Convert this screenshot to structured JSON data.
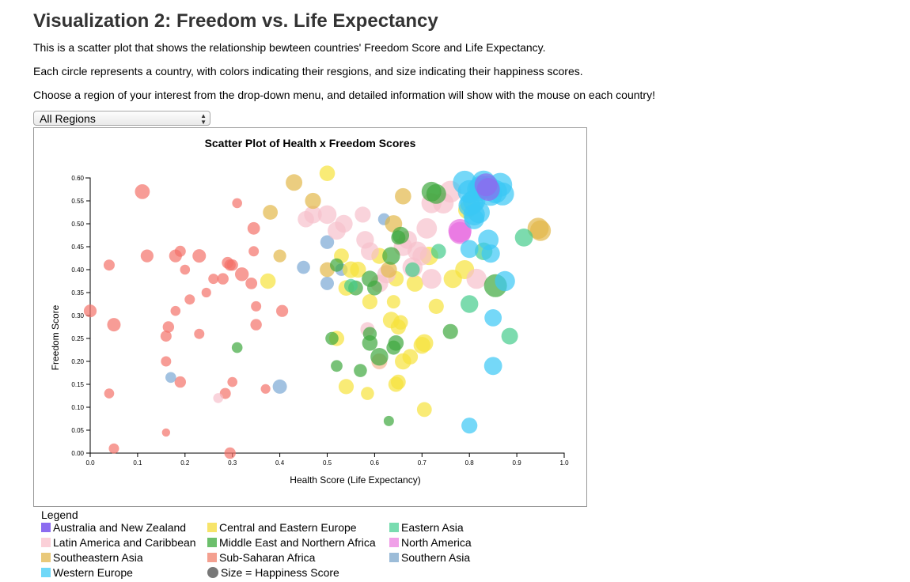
{
  "page": {
    "title": "Visualization 2: Freedom vs. Life Expectancy",
    "paragraphs": [
      "This is a scatter plot that shows the relationship bewteen countries' Freedom Score and Life Expectancy.",
      "Each circle represents a country, with colors indicating their resgions, and size indicating their happiness scores.",
      "Choose a region of your interest from the drop-down menu, and detailed information will show with the mouse on each country!"
    ]
  },
  "filter": {
    "selected": "All Regions"
  },
  "legend": {
    "title": "Legend",
    "items": [
      {
        "label": "Australia and New Zealand",
        "color": "#8c6cf0",
        "shape": "square"
      },
      {
        "label": "Central and Eastern Europe",
        "color": "#f7e46a",
        "shape": "square"
      },
      {
        "label": "Eastern Asia",
        "color": "#79dcb0",
        "shape": "square"
      },
      {
        "label": "Latin America and Caribbean",
        "color": "#fbd0d8",
        "shape": "square"
      },
      {
        "label": "Middle East and Northern Africa",
        "color": "#6cbf6c",
        "shape": "square"
      },
      {
        "label": "North America",
        "color": "#f0a0e8",
        "shape": "square"
      },
      {
        "label": "Southeastern Asia",
        "color": "#e9c97a",
        "shape": "square"
      },
      {
        "label": "Sub-Saharan Africa",
        "color": "#f4a090",
        "shape": "square"
      },
      {
        "label": "Southern Asia",
        "color": "#9cbcd8",
        "shape": "square"
      },
      {
        "label": "Western Europe",
        "color": "#6fd8f8",
        "shape": "square"
      },
      {
        "label": "Size = Happiness Score",
        "color": "#777777",
        "shape": "circle"
      }
    ]
  },
  "chart_data": {
    "type": "scatter",
    "title": "Scatter Plot of Health x Freedom Scores",
    "xlabel": "Health Score (Life Expectancy)",
    "ylabel": "Freedom Score",
    "xlim": [
      0,
      1
    ],
    "ylim": [
      0,
      0.6
    ],
    "xticks": [
      "0.0",
      "0.1",
      "0.2",
      "0.3",
      "0.4",
      "0.5",
      "0.6",
      "0.7",
      "0.8",
      "0.9",
      "1.0"
    ],
    "yticks": [
      "0.00",
      "0.05",
      "0.10",
      "0.15",
      "0.20",
      "0.25",
      "0.30",
      "0.35",
      "0.40",
      "0.45",
      "0.50",
      "0.55",
      "0.60"
    ],
    "grid": false,
    "size_encodes": "Happiness Score",
    "series": [
      {
        "name": "Sub-Saharan Africa",
        "color": "#f4726a",
        "points": [
          [
            0.11,
            0.57,
            5.0
          ],
          [
            0.12,
            0.43,
            4.4
          ],
          [
            0.04,
            0.41,
            3.9
          ],
          [
            0.0,
            0.31,
            4.4
          ],
          [
            0.05,
            0.28,
            4.6
          ],
          [
            0.04,
            0.13,
            3.6
          ],
          [
            0.05,
            0.01,
            3.7
          ],
          [
            0.16,
            0.045,
            3.1
          ],
          [
            0.16,
            0.2,
            3.7
          ],
          [
            0.16,
            0.255,
            3.9
          ],
          [
            0.165,
            0.275,
            4.0
          ],
          [
            0.18,
            0.43,
            4.4
          ],
          [
            0.19,
            0.44,
            3.9
          ],
          [
            0.2,
            0.4,
            3.6
          ],
          [
            0.18,
            0.31,
            3.6
          ],
          [
            0.21,
            0.335,
            3.7
          ],
          [
            0.23,
            0.43,
            4.6
          ],
          [
            0.23,
            0.26,
            3.7
          ],
          [
            0.245,
            0.35,
            3.5
          ],
          [
            0.26,
            0.38,
            3.7
          ],
          [
            0.28,
            0.38,
            4.0
          ],
          [
            0.29,
            0.415,
            4.1
          ],
          [
            0.295,
            0.41,
            4.0
          ],
          [
            0.3,
            0.41,
            4.0
          ],
          [
            0.32,
            0.39,
            4.7
          ],
          [
            0.31,
            0.545,
            3.6
          ],
          [
            0.345,
            0.49,
            4.3
          ],
          [
            0.345,
            0.44,
            3.7
          ],
          [
            0.34,
            0.37,
            4.1
          ],
          [
            0.35,
            0.32,
            3.7
          ],
          [
            0.35,
            0.28,
            4.0
          ],
          [
            0.405,
            0.31,
            4.2
          ],
          [
            0.37,
            0.14,
            3.5
          ],
          [
            0.3,
            0.155,
            3.6
          ],
          [
            0.285,
            0.13,
            3.9
          ],
          [
            0.19,
            0.155,
            4.0
          ],
          [
            0.295,
            0.0,
            4.0
          ]
        ]
      },
      {
        "name": "Southern Asia",
        "color": "#7aa8d4",
        "points": [
          [
            0.17,
            0.165,
            3.8
          ],
          [
            0.4,
            0.145,
            4.8
          ],
          [
            0.45,
            0.405,
            4.5
          ],
          [
            0.5,
            0.46,
            4.7
          ],
          [
            0.5,
            0.37,
            4.6
          ],
          [
            0.53,
            0.4,
            4.3
          ],
          [
            0.62,
            0.51,
            4.2
          ]
        ]
      },
      {
        "name": "Central and Eastern Europe",
        "color": "#f7e23c",
        "points": [
          [
            0.5,
            0.61,
            5.2
          ],
          [
            0.52,
            0.25,
            5.1
          ],
          [
            0.53,
            0.43,
            5.0
          ],
          [
            0.54,
            0.145,
            5.1
          ],
          [
            0.54,
            0.36,
            5.2
          ],
          [
            0.55,
            0.4,
            5.5
          ],
          [
            0.565,
            0.4,
            5.3
          ],
          [
            0.585,
            0.13,
            4.5
          ],
          [
            0.59,
            0.33,
            5.1
          ],
          [
            0.61,
            0.2,
            5.2
          ],
          [
            0.61,
            0.43,
            5.3
          ],
          [
            0.635,
            0.29,
            5.5
          ],
          [
            0.64,
            0.33,
            4.6
          ],
          [
            0.645,
            0.15,
            5.1
          ],
          [
            0.65,
            0.155,
            5.0
          ],
          [
            0.65,
            0.275,
            5.1
          ],
          [
            0.655,
            0.285,
            4.9
          ],
          [
            0.66,
            0.2,
            5.4
          ],
          [
            0.675,
            0.21,
            5.2
          ],
          [
            0.685,
            0.37,
            5.5
          ],
          [
            0.7,
            0.235,
            5.6
          ],
          [
            0.705,
            0.24,
            5.8
          ],
          [
            0.705,
            0.095,
            5.0
          ],
          [
            0.715,
            0.43,
            6.0
          ],
          [
            0.73,
            0.32,
            5.1
          ],
          [
            0.765,
            0.38,
            6.0
          ],
          [
            0.79,
            0.4,
            6.2
          ],
          [
            0.795,
            0.53,
            5.8
          ],
          [
            0.375,
            0.375,
            5.2
          ],
          [
            0.645,
            0.38,
            5.2
          ]
        ]
      },
      {
        "name": "Latin America and Caribbean",
        "color": "#f7c0cc",
        "points": [
          [
            0.27,
            0.12,
            3.6
          ],
          [
            0.455,
            0.51,
            5.4
          ],
          [
            0.47,
            0.52,
            5.8
          ],
          [
            0.5,
            0.52,
            6.1
          ],
          [
            0.52,
            0.485,
            5.9
          ],
          [
            0.535,
            0.5,
            5.8
          ],
          [
            0.575,
            0.52,
            5.3
          ],
          [
            0.58,
            0.465,
            5.8
          ],
          [
            0.585,
            0.27,
            4.8
          ],
          [
            0.59,
            0.44,
            5.9
          ],
          [
            0.61,
            0.37,
            5.8
          ],
          [
            0.61,
            0.2,
            5.3
          ],
          [
            0.625,
            0.39,
            6.0
          ],
          [
            0.66,
            0.45,
            6.1
          ],
          [
            0.67,
            0.465,
            6.0
          ],
          [
            0.68,
            0.405,
            6.5
          ],
          [
            0.69,
            0.44,
            6.3
          ],
          [
            0.7,
            0.43,
            6.2
          ],
          [
            0.71,
            0.49,
            6.6
          ],
          [
            0.72,
            0.38,
            6.4
          ],
          [
            0.72,
            0.545,
            6.5
          ],
          [
            0.745,
            0.545,
            6.7
          ],
          [
            0.76,
            0.57,
            7.0
          ],
          [
            0.815,
            0.38,
            6.5
          ]
        ]
      },
      {
        "name": "Southeastern Asia",
        "color": "#e2b84a",
        "points": [
          [
            0.43,
            0.59,
            5.5
          ],
          [
            0.38,
            0.525,
            5.0
          ],
          [
            0.4,
            0.43,
            4.4
          ],
          [
            0.47,
            0.55,
            5.3
          ],
          [
            0.5,
            0.4,
            5.0
          ],
          [
            0.63,
            0.4,
            5.4
          ],
          [
            0.64,
            0.5,
            5.7
          ],
          [
            0.66,
            0.56,
            5.4
          ],
          [
            0.945,
            0.49,
            6.8
          ],
          [
            0.95,
            0.485,
            6.7
          ]
        ]
      },
      {
        "name": "Middle East and Northern Africa",
        "color": "#3ea83e",
        "points": [
          [
            0.31,
            0.23,
            3.8
          ],
          [
            0.51,
            0.25,
            4.5
          ],
          [
            0.52,
            0.19,
            4.1
          ],
          [
            0.52,
            0.41,
            4.6
          ],
          [
            0.56,
            0.36,
            5.0
          ],
          [
            0.57,
            0.18,
            4.5
          ],
          [
            0.59,
            0.38,
            5.4
          ],
          [
            0.59,
            0.26,
            4.7
          ],
          [
            0.6,
            0.36,
            5.0
          ],
          [
            0.59,
            0.24,
            5.2
          ],
          [
            0.61,
            0.21,
            5.8
          ],
          [
            0.635,
            0.43,
            5.8
          ],
          [
            0.63,
            0.07,
            3.7
          ],
          [
            0.64,
            0.23,
            4.8
          ],
          [
            0.645,
            0.24,
            5.2
          ],
          [
            0.655,
            0.475,
            5.6
          ],
          [
            0.65,
            0.47,
            4.8
          ],
          [
            0.72,
            0.57,
            6.4
          ],
          [
            0.73,
            0.565,
            6.4
          ],
          [
            0.76,
            0.265,
            5.1
          ],
          [
            0.855,
            0.365,
            7.3
          ]
        ]
      },
      {
        "name": "Eastern Asia",
        "color": "#45cc8c",
        "points": [
          [
            0.55,
            0.365,
            4.6
          ],
          [
            0.68,
            0.4,
            4.9
          ],
          [
            0.735,
            0.44,
            5.0
          ],
          [
            0.83,
            0.44,
            5.8
          ],
          [
            0.8,
            0.325,
            5.8
          ],
          [
            0.885,
            0.255,
            5.5
          ],
          [
            0.915,
            0.47,
            5.9
          ]
        ]
      },
      {
        "name": "North America",
        "color": "#e86ee0",
        "points": [
          [
            0.78,
            0.48,
            7.1
          ],
          [
            0.78,
            0.485,
            7.4
          ]
        ]
      },
      {
        "name": "Western Europe",
        "color": "#3ac8f5",
        "points": [
          [
            0.79,
            0.59,
            7.5
          ],
          [
            0.8,
            0.57,
            7.4
          ],
          [
            0.81,
            0.55,
            7.2
          ],
          [
            0.82,
            0.575,
            7.5
          ],
          [
            0.825,
            0.58,
            7.4
          ],
          [
            0.83,
            0.59,
            7.6
          ],
          [
            0.84,
            0.58,
            7.3
          ],
          [
            0.845,
            0.565,
            7.5
          ],
          [
            0.855,
            0.57,
            7.4
          ],
          [
            0.865,
            0.585,
            7.6
          ],
          [
            0.87,
            0.565,
            7.3
          ],
          [
            0.8,
            0.54,
            7.0
          ],
          [
            0.8,
            0.445,
            5.9
          ],
          [
            0.805,
            0.545,
            7.4
          ],
          [
            0.81,
            0.52,
            6.9
          ],
          [
            0.81,
            0.51,
            6.5
          ],
          [
            0.84,
            0.465,
            6.6
          ],
          [
            0.845,
            0.435,
            6.0
          ],
          [
            0.85,
            0.295,
            5.7
          ],
          [
            0.85,
            0.19,
            5.9
          ],
          [
            0.875,
            0.375,
            6.5
          ],
          [
            0.8,
            0.06,
            5.3
          ],
          [
            0.82,
            0.525,
            7.0
          ]
        ]
      },
      {
        "name": "Australia and New Zealand",
        "color": "#8c6cf0",
        "points": [
          [
            0.835,
            0.585,
            7.3
          ],
          [
            0.84,
            0.575,
            7.3
          ]
        ]
      }
    ]
  }
}
